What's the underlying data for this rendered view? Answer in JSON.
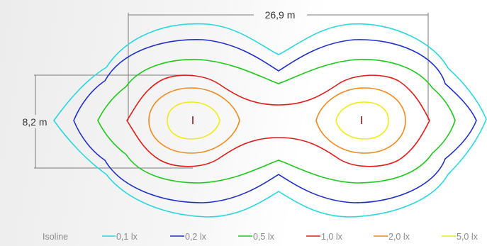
{
  "dimensions": {
    "width_label": "26,9 m",
    "height_label": "8,2 m"
  },
  "legend": {
    "title": "Isoline",
    "items": [
      {
        "label": "0,1 lx",
        "color": "#2ad6e0"
      },
      {
        "label": "0,2 lx",
        "color": "#1f2fc9"
      },
      {
        "label": "0,5 lx",
        "color": "#1ec81e"
      },
      {
        "label": "1,0 lx",
        "color": "#e21b1b"
      },
      {
        "label": "2,0 lx",
        "color": "#f08a1e"
      },
      {
        "label": "5,0 lx",
        "color": "#ecec16"
      }
    ]
  },
  "luminaire_marker_color": "#8a1a1a"
}
